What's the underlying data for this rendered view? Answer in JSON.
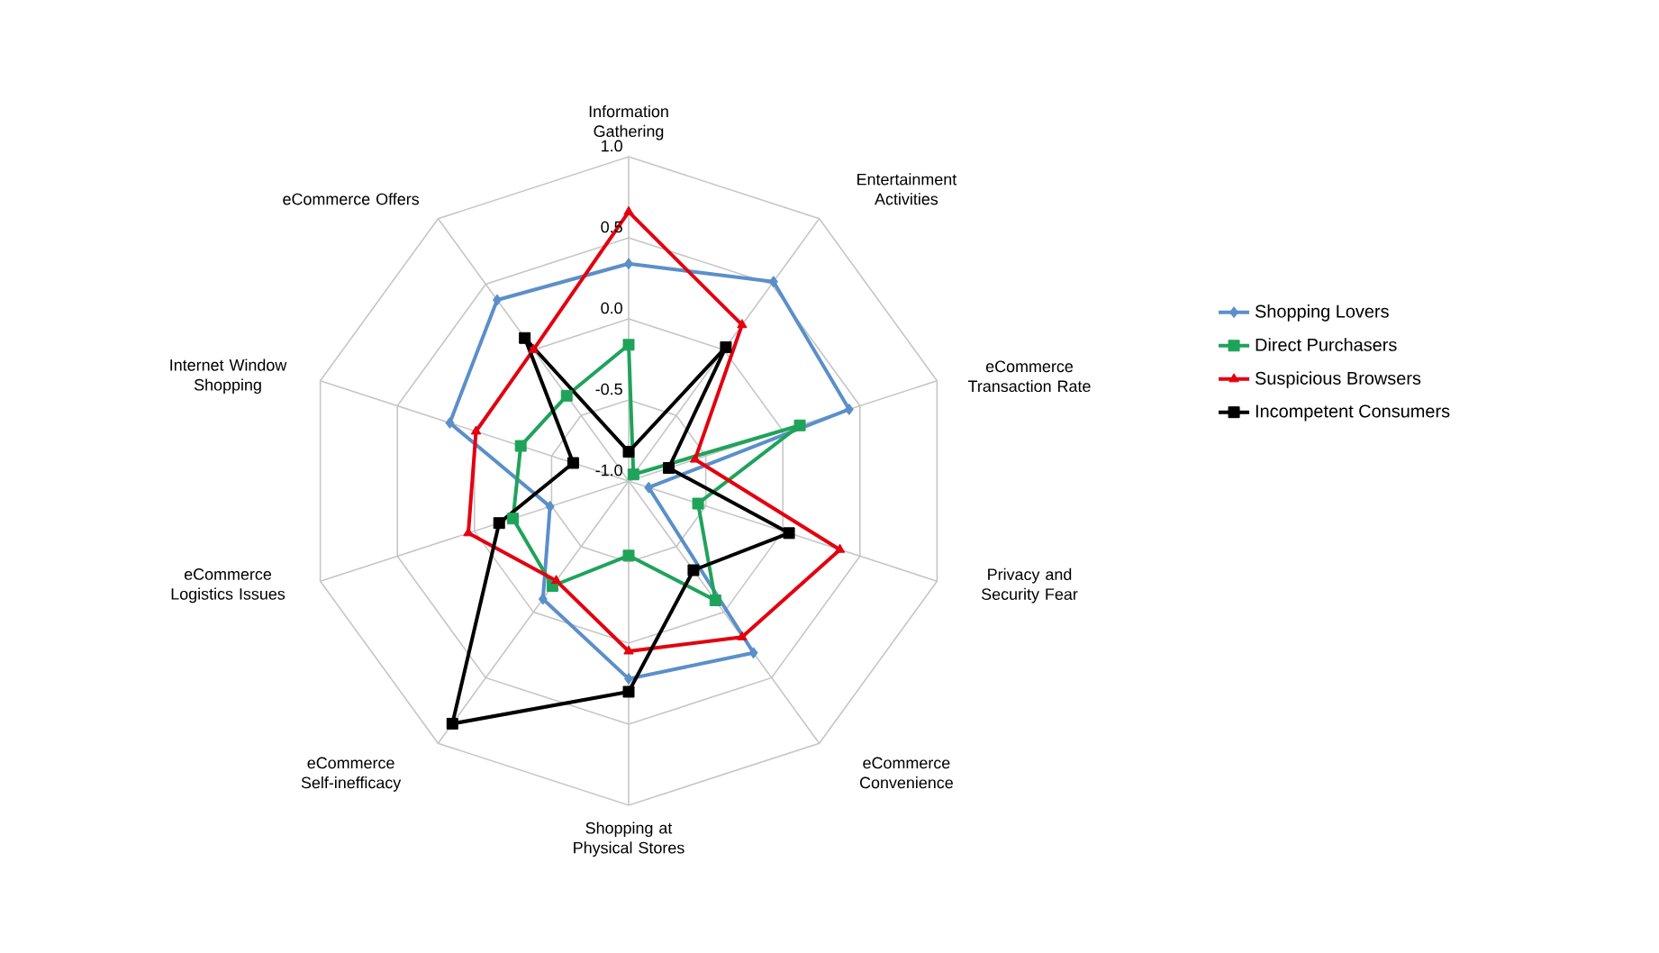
{
  "chart_data": {
    "type": "radar",
    "categories": [
      "Information Gathering",
      "Entertainment Activities",
      "eCommerce Transaction Rate",
      "Privacy and Security Fear",
      "eCommerce Convenience",
      "Shopping at Physical Stores",
      "eCommerce Self-inefficacy",
      "eCommerce Logistics Issues",
      "Internet Window Shopping",
      "eCommerce Offers"
    ],
    "ylim": [
      -1,
      1
    ],
    "yticks": [
      {
        "value": -1,
        "label": "-1.0"
      },
      {
        "value": -0.5,
        "label": "-0.5"
      },
      {
        "value": 0,
        "label": "0.0"
      },
      {
        "value": 0.5,
        "label": "0.5"
      },
      {
        "value": 1,
        "label": "1.0"
      }
    ],
    "grid": true,
    "legend": "right",
    "series": [
      {
        "name": "Shopping Lovers",
        "color": "#5b8fc9",
        "marker": "diamond",
        "values": [
          0.34,
          0.52,
          0.43,
          -0.87,
          0.31,
          0.22,
          -0.1,
          -0.49,
          0.16,
          0.38
        ]
      },
      {
        "name": "Direct Purchasers",
        "color": "#1fa35a",
        "marker": "square",
        "values": [
          -0.16,
          -0.95,
          0.11,
          -0.55,
          -0.09,
          -0.54,
          -0.2,
          -0.25,
          -0.3,
          -0.35
        ]
      },
      {
        "name": "Suspicious Browsers",
        "color": "#e3000f",
        "marker": "triangle",
        "values": [
          0.66,
          0.19,
          -0.57,
          0.37,
          0.19,
          0.05,
          -0.24,
          0.04,
          -0.01,
          0.0
        ]
      },
      {
        "name": "Incompetent Consumers",
        "color": "#000000",
        "marker": "square",
        "values": [
          -0.82,
          0.02,
          -0.74,
          0.04,
          -0.32,
          0.3,
          0.85,
          -0.16,
          -0.64,
          0.09
        ]
      }
    ]
  }
}
